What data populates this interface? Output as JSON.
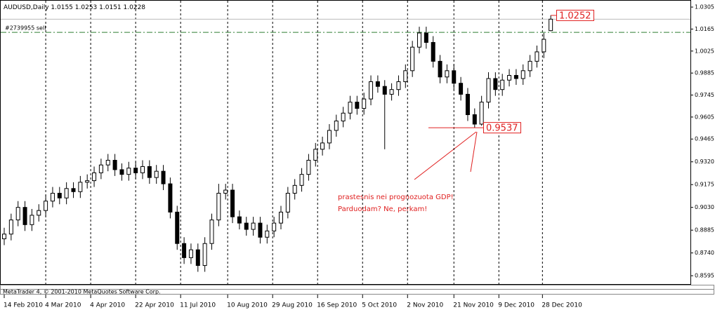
{
  "chart_data": {
    "type": "candlestick",
    "title": "AUDUSD,Daily",
    "open": [
      0.883,
      0.886,
      0.895,
      0.903,
      0.892,
      0.898,
      0.901,
      0.907,
      0.912,
      0.909,
      0.915,
      0.913,
      0.919,
      0.92,
      0.925,
      0.93,
      0.933,
      0.927,
      0.924,
      0.928,
      0.925,
      0.929,
      0.922,
      0.926,
      0.918,
      0.9,
      0.88,
      0.871,
      0.876,
      0.866,
      0.88,
      0.895,
      0.912,
      0.914,
      0.897,
      0.893,
      0.889,
      0.893,
      0.884,
      0.888,
      0.893,
      0.9,
      0.912,
      0.917,
      0.924,
      0.933,
      0.94,
      0.944,
      0.952,
      0.958,
      0.963,
      0.97,
      0.966,
      0.972,
      0.983,
      0.98,
      0.975,
      0.978,
      0.983,
      0.99,
      1.005,
      1.014,
      1.008,
      0.996,
      0.986,
      0.99,
      0.982,
      0.975,
      0.962,
      0.956,
      0.97,
      0.985,
      0.978,
      0.984,
      0.987,
      0.985,
      0.99,
      0.996,
      1.002,
      1.0155
    ],
    "high": [
      0.89,
      0.899,
      0.907,
      0.907,
      0.902,
      0.905,
      0.911,
      0.916,
      0.916,
      0.919,
      0.919,
      0.923,
      0.924,
      0.929,
      0.934,
      0.937,
      0.937,
      0.931,
      0.932,
      0.932,
      0.933,
      0.933,
      0.93,
      0.93,
      0.922,
      0.904,
      0.884,
      0.88,
      0.88,
      0.884,
      0.899,
      0.918,
      0.918,
      0.918,
      0.901,
      0.897,
      0.897,
      0.897,
      0.892,
      0.897,
      0.904,
      0.916,
      0.921,
      0.928,
      0.937,
      0.944,
      0.948,
      0.956,
      0.962,
      0.967,
      0.974,
      0.974,
      0.976,
      0.987,
      0.987,
      0.984,
      0.982,
      0.987,
      0.994,
      1.009,
      1.018,
      1.018,
      1.012,
      1.0,
      0.994,
      0.994,
      0.986,
      0.979,
      0.966,
      0.974,
      0.989,
      0.989,
      0.988,
      0.991,
      0.991,
      0.994,
      1.0,
      1.006,
      1.014,
      1.0253
    ],
    "low": [
      0.879,
      0.882,
      0.891,
      0.888,
      0.888,
      0.894,
      0.897,
      0.903,
      0.905,
      0.905,
      0.909,
      0.909,
      0.915,
      0.916,
      0.921,
      0.926,
      0.923,
      0.92,
      0.92,
      0.921,
      0.921,
      0.918,
      0.918,
      0.914,
      0.896,
      0.876,
      0.867,
      0.867,
      0.862,
      0.862,
      0.876,
      0.891,
      0.908,
      0.893,
      0.889,
      0.885,
      0.885,
      0.88,
      0.88,
      0.884,
      0.889,
      0.896,
      0.908,
      0.913,
      0.92,
      0.929,
      0.936,
      0.94,
      0.948,
      0.954,
      0.959,
      0.962,
      0.962,
      0.968,
      0.976,
      0.94,
      0.971,
      0.974,
      0.979,
      0.986,
      1.001,
      1.004,
      0.992,
      0.982,
      0.982,
      0.978,
      0.971,
      0.958,
      0.9537,
      0.955,
      0.966,
      0.974,
      0.974,
      0.98,
      0.981,
      0.981,
      0.986,
      0.992,
      0.998,
      1.0151
    ],
    "close": [
      0.886,
      0.895,
      0.903,
      0.892,
      0.898,
      0.901,
      0.907,
      0.912,
      0.909,
      0.915,
      0.913,
      0.919,
      0.92,
      0.925,
      0.93,
      0.933,
      0.927,
      0.924,
      0.928,
      0.925,
      0.929,
      0.922,
      0.926,
      0.918,
      0.9,
      0.88,
      0.871,
      0.876,
      0.866,
      0.88,
      0.895,
      0.912,
      0.914,
      0.897,
      0.893,
      0.889,
      0.893,
      0.884,
      0.888,
      0.893,
      0.9,
      0.912,
      0.917,
      0.924,
      0.933,
      0.94,
      0.944,
      0.952,
      0.958,
      0.963,
      0.97,
      0.966,
      0.972,
      0.983,
      0.98,
      0.975,
      0.978,
      0.983,
      0.99,
      1.005,
      1.014,
      1.008,
      0.996,
      0.986,
      0.99,
      0.982,
      0.975,
      0.962,
      0.956,
      0.97,
      0.985,
      0.978,
      0.984,
      0.987,
      0.985,
      0.99,
      0.996,
      1.002,
      1.01,
      1.0228
    ],
    "xticks": [
      {
        "value": 0,
        "label": "14 Feb 2010"
      },
      {
        "value": 6,
        "label": "4 Mar 2010"
      },
      {
        "value": 12.5,
        "label": "4 Apr 2010"
      },
      {
        "value": 19,
        "label": "22 Apr 2010"
      },
      {
        "value": 25.5,
        "label": "11 Jul 2010"
      },
      {
        "value": 32.3,
        "label": "10 Aug 2010"
      },
      {
        "value": 38.8,
        "label": "29 Aug 2010"
      },
      {
        "value": 45.3,
        "label": "16 Sep 2010"
      },
      {
        "value": 51.8,
        "label": "5 Oct 2010"
      },
      {
        "value": 58.3,
        "label": "2 Nov 2010"
      },
      {
        "value": 65,
        "label": "21 Nov 2010"
      },
      {
        "value": 71.5,
        "label": "9 Dec 2010"
      },
      {
        "value": 77.8,
        "label": "28 Dec 2010"
      }
    ],
    "ylim": [
      0.8542,
      1.035
    ],
    "yticks": [
      1.0305,
      1.0165,
      1.0025,
      0.9885,
      0.9745,
      0.9605,
      0.9465,
      {
        "value": 0.932,
        "label": "0.9320"
      },
      0.9175,
      {
        "value": 0.903,
        "label": "0.9030"
      },
      0.8885,
      {
        "value": 0.874,
        "label": "0.8740"
      },
      0.8595
    ],
    "grid": true,
    "order": {
      "label": "#2739955 sell",
      "level": 1.0144,
      "color": "#2e7d32"
    },
    "price_labels": [
      1.0252,
      0.9537
    ],
    "annotation_color": "#e02020",
    "notes": [
      "prastesnis nei prognozuota GDP!",
      "Parduodam? Ne, perkam!"
    ]
  },
  "status_bar": "MetaTrader 4, © 2001-2010 MetaQuotes Software Corp."
}
